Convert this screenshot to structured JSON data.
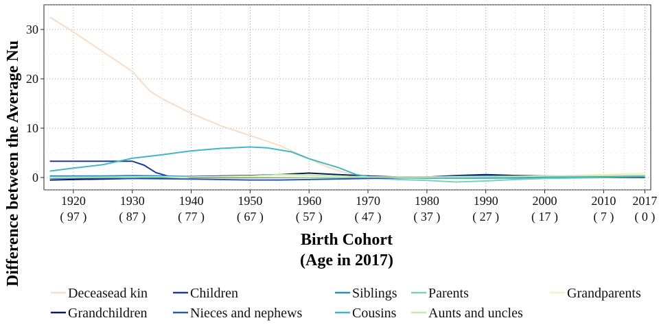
{
  "chart_data": {
    "type": "line",
    "title": "",
    "ylabel": "Difference between the Average Nu",
    "xlabel_line1": "Birth Cohort",
    "xlabel_line2": "(Age in 2017)",
    "xlim": [
      1915,
      2018
    ],
    "ylim": [
      -2.5,
      35
    ],
    "grid": true,
    "legend_position": "bottom",
    "x_ticks": [
      {
        "value": 1920,
        "label": "1920",
        "sublabel": "( 97 )"
      },
      {
        "value": 1930,
        "label": "1930",
        "sublabel": "( 87 )"
      },
      {
        "value": 1940,
        "label": "1940",
        "sublabel": "( 77 )"
      },
      {
        "value": 1950,
        "label": "1950",
        "sublabel": "( 67 )"
      },
      {
        "value": 1960,
        "label": "1960",
        "sublabel": "( 57 )"
      },
      {
        "value": 1970,
        "label": "1970",
        "sublabel": "( 47 )"
      },
      {
        "value": 1980,
        "label": "1980",
        "sublabel": "( 37 )"
      },
      {
        "value": 1990,
        "label": "1990",
        "sublabel": "( 27 )"
      },
      {
        "value": 2000,
        "label": "2000",
        "sublabel": "( 17 )"
      },
      {
        "value": 2010,
        "label": "2010",
        "sublabel": "( 7 )"
      },
      {
        "value": 2017,
        "label": "2017",
        "sublabel": "( 0 )"
      }
    ],
    "y_ticks": [
      0,
      10,
      20,
      30
    ],
    "series": [
      {
        "name": "Deceasead kin",
        "color": "#f9dcc4",
        "points": [
          [
            1916,
            32.5
          ],
          [
            1920,
            29.5
          ],
          [
            1925,
            25.5
          ],
          [
            1930,
            21.5
          ],
          [
            1933,
            17.5
          ],
          [
            1935,
            16
          ],
          [
            1940,
            13
          ],
          [
            1945,
            10.5
          ],
          [
            1950,
            8.5
          ],
          [
            1955,
            6.5
          ],
          [
            1960,
            3.8
          ],
          [
            1963,
            2.2
          ],
          [
            1966,
            1.0
          ],
          [
            1970,
            0.3
          ],
          [
            1975,
            0.1
          ],
          [
            1980,
            0.0
          ],
          [
            1990,
            0.0
          ],
          [
            2000,
            0.0
          ],
          [
            2010,
            0.0
          ],
          [
            2017,
            0.0
          ]
        ]
      },
      {
        "name": "Children",
        "color": "#1f3a93",
        "points": [
          [
            1916,
            3.3
          ],
          [
            1920,
            3.3
          ],
          [
            1925,
            3.3
          ],
          [
            1930,
            3.3
          ],
          [
            1932,
            2.5
          ],
          [
            1934,
            1.0
          ],
          [
            1936,
            0.3
          ],
          [
            1940,
            0.0
          ],
          [
            1950,
            0.0
          ],
          [
            1960,
            0.0
          ],
          [
            1970,
            0.0
          ],
          [
            1980,
            0.0
          ],
          [
            1990,
            0.0
          ],
          [
            2000,
            0.0
          ],
          [
            2010,
            0.0
          ],
          [
            2017,
            0.0
          ]
        ]
      },
      {
        "name": "Siblings",
        "color": "#2b8cbe",
        "points": [
          [
            1916,
            0.3
          ],
          [
            1920,
            0.3
          ],
          [
            1925,
            0.3
          ],
          [
            1930,
            0.4
          ],
          [
            1935,
            0.3
          ],
          [
            1940,
            0.2
          ],
          [
            1950,
            0.1
          ],
          [
            1960,
            0.1
          ],
          [
            1970,
            0.0
          ],
          [
            1980,
            -0.1
          ],
          [
            1990,
            -0.1
          ],
          [
            2000,
            -0.1
          ],
          [
            2010,
            0.0
          ],
          [
            2017,
            0.1
          ]
        ]
      },
      {
        "name": "Parents",
        "color": "#7fcdbb",
        "points": [
          [
            1916,
            0.0
          ],
          [
            1930,
            0.1
          ],
          [
            1940,
            0.1
          ],
          [
            1950,
            0.1
          ],
          [
            1960,
            0.0
          ],
          [
            1970,
            -0.1
          ],
          [
            1975,
            -0.4
          ],
          [
            1980,
            -0.6
          ],
          [
            1985,
            -0.9
          ],
          [
            1990,
            -0.7
          ],
          [
            1995,
            -0.4
          ],
          [
            2000,
            -0.2
          ],
          [
            2010,
            0.0
          ],
          [
            2017,
            0.2
          ]
        ]
      },
      {
        "name": "Grandparents",
        "color": "#eef5c4",
        "points": [
          [
            1916,
            0.0
          ],
          [
            1940,
            0.1
          ],
          [
            1960,
            0.2
          ],
          [
            1970,
            0.2
          ],
          [
            1980,
            0.1
          ],
          [
            1990,
            0.2
          ],
          [
            2000,
            0.3
          ],
          [
            2005,
            0.4
          ],
          [
            2010,
            0.6
          ],
          [
            2015,
            0.8
          ],
          [
            2017,
            0.9
          ]
        ]
      },
      {
        "name": "Grandchildren",
        "color": "#081d58",
        "points": [
          [
            1916,
            -0.5
          ],
          [
            1920,
            -0.4
          ],
          [
            1925,
            -0.3
          ],
          [
            1930,
            -0.2
          ],
          [
            1935,
            0.0
          ],
          [
            1940,
            0.2
          ],
          [
            1945,
            0.3
          ],
          [
            1950,
            0.4
          ],
          [
            1955,
            0.6
          ],
          [
            1960,
            0.9
          ],
          [
            1965,
            0.6
          ],
          [
            1970,
            0.3
          ],
          [
            1975,
            0.1
          ],
          [
            1980,
            0.1
          ],
          [
            1985,
            0.4
          ],
          [
            1990,
            0.6
          ],
          [
            1995,
            0.4
          ],
          [
            2000,
            0.3
          ],
          [
            2010,
            0.2
          ],
          [
            2017,
            0.2
          ]
        ]
      },
      {
        "name": "Nieces and nephews",
        "color": "#225ea8",
        "points": [
          [
            1916,
            -0.1
          ],
          [
            1920,
            -0.1
          ],
          [
            1930,
            -0.2
          ],
          [
            1940,
            -0.3
          ],
          [
            1950,
            -0.5
          ],
          [
            1955,
            -0.5
          ],
          [
            1960,
            -0.4
          ],
          [
            1970,
            -0.2
          ],
          [
            1980,
            0.1
          ],
          [
            1985,
            0.3
          ],
          [
            1990,
            0.3
          ],
          [
            2000,
            0.2
          ],
          [
            2010,
            0.1
          ],
          [
            2017,
            0.1
          ]
        ]
      },
      {
        "name": "Cousins",
        "color": "#41b6c4",
        "points": [
          [
            1916,
            1.3
          ],
          [
            1920,
            1.9
          ],
          [
            1925,
            2.6
          ],
          [
            1930,
            3.9
          ],
          [
            1935,
            4.6
          ],
          [
            1940,
            5.4
          ],
          [
            1945,
            5.9
          ],
          [
            1950,
            6.2
          ],
          [
            1953,
            6.0
          ],
          [
            1957,
            5.2
          ],
          [
            1960,
            3.8
          ],
          [
            1965,
            2.0
          ],
          [
            1968,
            0.6
          ],
          [
            1970,
            0.2
          ],
          [
            1975,
            0.0
          ],
          [
            1980,
            -0.1
          ],
          [
            1990,
            -0.1
          ],
          [
            2000,
            0.0
          ],
          [
            2010,
            0.1
          ],
          [
            2017,
            0.2
          ]
        ]
      },
      {
        "name": "Aunts and uncles",
        "color": "#c7e9b4",
        "points": [
          [
            1916,
            0.0
          ],
          [
            1930,
            0.1
          ],
          [
            1940,
            0.1
          ],
          [
            1950,
            0.3
          ],
          [
            1955,
            0.6
          ],
          [
            1960,
            0.5
          ],
          [
            1965,
            0.3
          ],
          [
            1970,
            0.1
          ],
          [
            1980,
            0.1
          ],
          [
            1990,
            0.2
          ],
          [
            2000,
            0.3
          ],
          [
            2010,
            0.4
          ],
          [
            2017,
            0.5
          ]
        ]
      }
    ]
  }
}
